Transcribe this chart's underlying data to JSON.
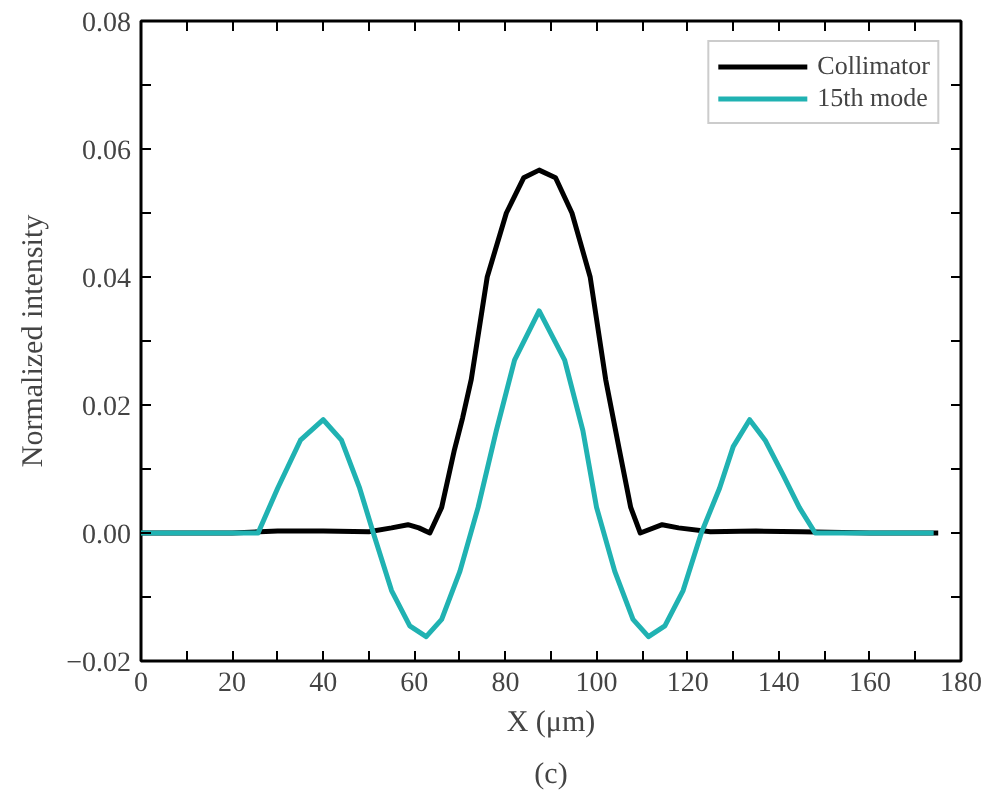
{
  "chart_data": {
    "type": "line",
    "xlabel": "X (μm)",
    "ylabel": "Normalized intensity",
    "annotations": [
      "(c)"
    ],
    "xlim": [
      0,
      180
    ],
    "ylim": [
      -0.02,
      0.08
    ],
    "xticks": [
      0,
      {
        "value": 10,
        "label": null
      },
      20,
      {
        "value": 30,
        "label": null
      },
      40,
      {
        "value": 50,
        "label": null
      },
      60,
      {
        "value": 70,
        "label": null
      },
      80,
      {
        "value": 90,
        "label": null
      },
      100,
      {
        "value": 110,
        "label": null
      },
      120,
      {
        "value": 130,
        "label": null
      },
      140,
      {
        "value": 150,
        "label": null
      },
      160,
      {
        "value": 170,
        "label": null
      },
      180
    ],
    "yticks": [
      {
        "value": -0.02,
        "label": "−0.02"
      },
      {
        "value": -0.01,
        "label": null
      },
      "0.00",
      {
        "value": 0.01,
        "label": null
      },
      {
        "value": 0.02,
        "label": "0.02"
      },
      {
        "value": 0.03,
        "label": null
      },
      {
        "value": 0.04,
        "label": "0.04"
      },
      {
        "value": 0.05,
        "label": null
      },
      {
        "value": 0.06,
        "label": "0.06"
      },
      {
        "value": 0.07,
        "label": null
      },
      {
        "value": 0.08,
        "label": "0.08"
      }
    ],
    "grid": false,
    "legend": "top right",
    "marker": "none",
    "line_style": "solid",
    "series": [
      {
        "name": "Collimator",
        "color": "#000000",
        "x": [
          0,
          20,
          30,
          40,
          50,
          55,
          58.6,
          61,
          63.4,
          66,
          68.8,
          70.6,
          72.5,
          76,
          80.2,
          84,
          87.4,
          91,
          94.6,
          98.6,
          102,
          105,
          107.5,
          109.6,
          114.4,
          118,
          125,
          135,
          145,
          160,
          175
        ],
        "values": [
          0,
          0,
          0.0003,
          0.0003,
          0.0002,
          0.0008,
          0.0013,
          0.0008,
          0,
          0.004,
          0.013,
          0.018,
          0.024,
          0.04,
          0.05,
          0.0555,
          0.0567,
          0.0555,
          0.05,
          0.04,
          0.024,
          0.013,
          0.004,
          0,
          0.0013,
          0.0008,
          0.0002,
          0.0003,
          0.0002,
          0,
          0
        ]
      },
      {
        "name": "15th mode",
        "color": "#20b2b2",
        "x": [
          0,
          25.7,
          30,
          35,
          40,
          44,
          48,
          51,
          55,
          59,
          62.6,
          66,
          70,
          74,
          78,
          82,
          87.4,
          93,
          97,
          100,
          104,
          108,
          111.4,
          115,
          119,
          123,
          127,
          130,
          133.6,
          137,
          141,
          144.5,
          148,
          160,
          174
        ],
        "values": [
          0,
          0,
          0.007,
          0.0145,
          0.0177,
          0.0145,
          0.007,
          0,
          -0.009,
          -0.0145,
          -0.0162,
          -0.0135,
          -0.006,
          0.004,
          0.016,
          0.027,
          0.0347,
          0.027,
          0.016,
          0.004,
          -0.006,
          -0.0135,
          -0.0162,
          -0.0145,
          -0.009,
          0,
          0.007,
          0.0135,
          0.0177,
          0.0145,
          0.009,
          0.004,
          0,
          0,
          0
        ]
      }
    ]
  }
}
